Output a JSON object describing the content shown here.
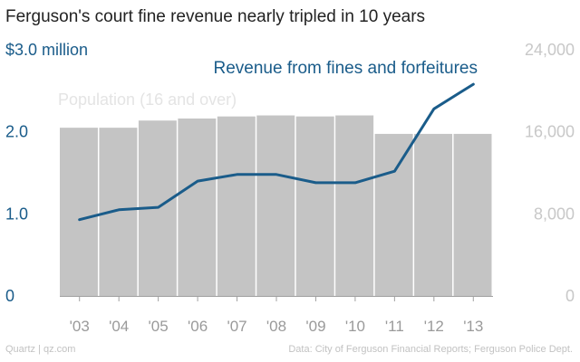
{
  "chart_data": {
    "type": "bar+line",
    "title": "Ferguson's court fine revenue nearly tripled in 10 years",
    "categories": [
      "'03",
      "'04",
      "'05",
      "'06",
      "'07",
      "'08",
      "'09",
      "'10",
      "'11",
      "'12",
      "'13"
    ],
    "series": [
      {
        "name": "Population (16 and over)",
        "type": "bar",
        "axis": "right",
        "color": "#c4c4c4",
        "values": [
          16400,
          16400,
          17100,
          17300,
          17500,
          17600,
          17500,
          17600,
          15800,
          15800,
          15800
        ]
      },
      {
        "name": "Revenue from fines and forfeitures",
        "type": "line",
        "axis": "left",
        "color": "#1a5c8a",
        "values": [
          0.93,
          1.05,
          1.08,
          1.4,
          1.48,
          1.48,
          1.38,
          1.38,
          1.52,
          2.28,
          2.58
        ]
      }
    ],
    "y_left": {
      "range": [
        0,
        3.0
      ],
      "ticks": [
        0,
        1.0,
        2.0,
        3.0
      ],
      "tick_labels": [
        "0",
        "1.0",
        "2.0",
        "$3.0 million"
      ],
      "color": "#1a5c8a"
    },
    "y_right": {
      "range": [
        0,
        24000
      ],
      "ticks": [
        0,
        8000,
        16000,
        24000
      ],
      "tick_labels": [
        "0",
        "8,000",
        "16,000",
        "24,000"
      ],
      "color": "#c8c8c8"
    },
    "grid": false,
    "legend": "inline labels"
  },
  "footer": {
    "left": "Quartz | qz.com",
    "right": "Data: City of Ferguson Financial Reports; Ferguson Police Dept."
  },
  "colors": {
    "bar": "#c4c4c4",
    "line": "#1a5c8a",
    "left_axis_text": "#1a5c8a",
    "right_axis_text": "#c8c8c8",
    "bar_label_text": "#e4e4e4",
    "tick_text": "#9a9a9a",
    "axis_line": "#a0a0a0"
  }
}
